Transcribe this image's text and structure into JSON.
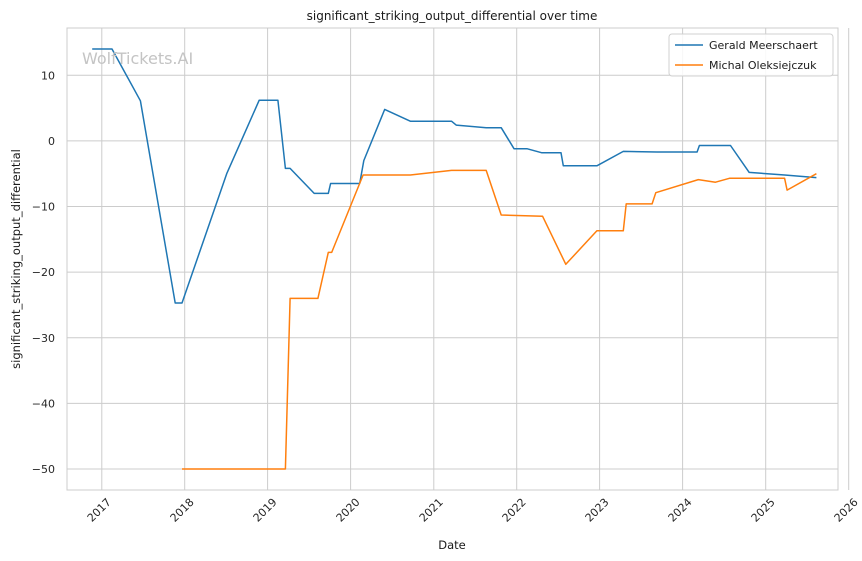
{
  "chart_data": {
    "type": "line",
    "title": "significant_striking_output_differential over time",
    "xlabel": "Date",
    "ylabel": "significant_striking_output_differential",
    "watermark": "WolfTickets.AI",
    "grid": true,
    "legend_position": "top-right",
    "xlim": [
      "2016-08-01",
      "2025-11-15"
    ],
    "ylim": [
      -53.2,
      17.2
    ],
    "x_ticks": [
      "2017-01-01",
      "2018-01-01",
      "2019-01-01",
      "2020-01-01",
      "2021-01-01",
      "2022-01-01",
      "2023-01-01",
      "2024-01-01",
      "2025-01-01",
      "2026-01-01"
    ],
    "x_tick_labels": [
      "2017",
      "2018",
      "2019",
      "2020",
      "2021",
      "2022",
      "2023",
      "2024",
      "2025",
      "2026"
    ],
    "y_ticks": [
      10,
      0,
      -10,
      -20,
      -30,
      -40,
      -50
    ],
    "y_tick_labels": [
      "10",
      "0",
      "−10",
      "−20",
      "−30",
      "−40",
      "−50"
    ],
    "series": [
      {
        "name": "Gerald Meerschaert",
        "color": "#1f77b4",
        "points": [
          [
            "2016-11-20",
            14.0
          ],
          [
            "2017-02-15",
            14.0
          ],
          [
            "2017-06-20",
            6.1
          ],
          [
            "2017-11-20",
            -24.7
          ],
          [
            "2017-12-20",
            -24.7
          ],
          [
            "2018-07-05",
            -5.0
          ],
          [
            "2018-11-25",
            6.2
          ],
          [
            "2019-02-15",
            6.2
          ],
          [
            "2019-03-20",
            -4.2
          ],
          [
            "2019-04-10",
            -4.2
          ],
          [
            "2019-07-25",
            -8.0
          ],
          [
            "2019-09-25",
            -8.0
          ],
          [
            "2019-10-05",
            -6.5
          ],
          [
            "2020-02-10",
            -6.5
          ],
          [
            "2020-02-28",
            -3.0
          ],
          [
            "2020-05-30",
            4.8
          ],
          [
            "2020-09-20",
            3.0
          ],
          [
            "2021-03-20",
            3.0
          ],
          [
            "2021-04-10",
            2.4
          ],
          [
            "2021-08-20",
            2.0
          ],
          [
            "2021-10-25",
            2.0
          ],
          [
            "2021-12-20",
            -1.2
          ],
          [
            "2022-02-15",
            -1.2
          ],
          [
            "2022-04-20",
            -1.8
          ],
          [
            "2022-07-15",
            -1.8
          ],
          [
            "2022-07-25",
            -3.8
          ],
          [
            "2022-12-20",
            -3.8
          ],
          [
            "2023-04-15",
            -1.6
          ],
          [
            "2023-09-10",
            -1.7
          ],
          [
            "2024-03-05",
            -1.7
          ],
          [
            "2024-03-15",
            -0.7
          ],
          [
            "2024-07-30",
            -0.7
          ],
          [
            "2024-10-20",
            -4.8
          ],
          [
            "2025-03-25",
            -5.2
          ],
          [
            "2025-08-12",
            -5.6
          ]
        ]
      },
      {
        "name": "Michal Oleksiejczuk",
        "color": "#ff7f0e",
        "points": [
          [
            "2017-12-20",
            -50.0
          ],
          [
            "2019-03-20",
            -50.0
          ],
          [
            "2019-04-10",
            -24.0
          ],
          [
            "2019-08-10",
            -24.0
          ],
          [
            "2019-09-25",
            -17.0
          ],
          [
            "2019-10-10",
            -17.0
          ],
          [
            "2020-02-25",
            -5.2
          ],
          [
            "2020-09-20",
            -5.2
          ],
          [
            "2021-03-20",
            -4.5
          ],
          [
            "2021-08-20",
            -4.5
          ],
          [
            "2021-10-25",
            -11.3
          ],
          [
            "2022-04-25",
            -11.5
          ],
          [
            "2022-08-05",
            -18.8
          ],
          [
            "2022-12-20",
            -13.7
          ],
          [
            "2023-04-15",
            -13.7
          ],
          [
            "2023-04-28",
            -9.6
          ],
          [
            "2023-08-20",
            -9.6
          ],
          [
            "2023-09-05",
            -7.9
          ],
          [
            "2024-03-10",
            -5.9
          ],
          [
            "2024-05-25",
            -6.3
          ],
          [
            "2024-07-25",
            -5.7
          ],
          [
            "2025-03-25",
            -5.7
          ],
          [
            "2025-04-05",
            -7.5
          ],
          [
            "2025-08-12",
            -5.0
          ]
        ]
      }
    ]
  }
}
